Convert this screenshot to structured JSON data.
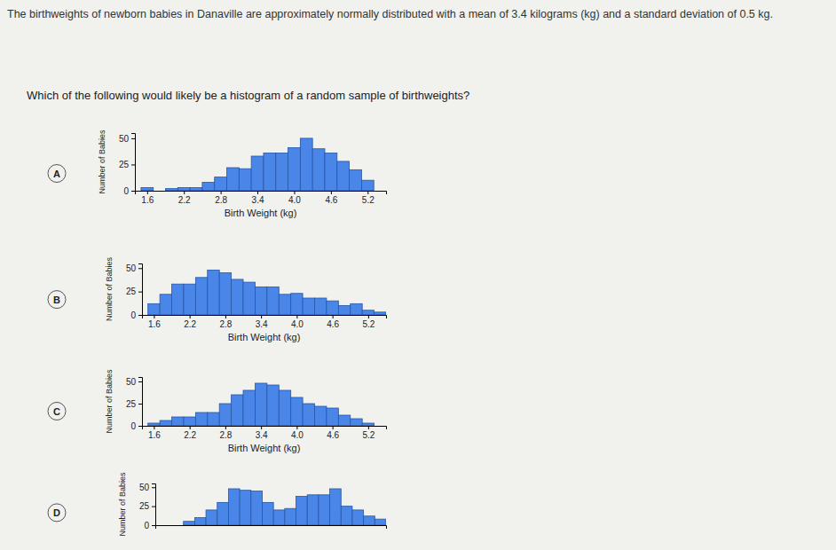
{
  "text": {
    "intro": "The birthweights of newborn babies in Danaville are approximately normally distributed with a mean of 3.4 kilograms (kg) and a standard deviation of 0.5 kg.",
    "question": "Which of the following would likely be a histogram of a random sample of birthweights?"
  },
  "chart_data": [
    {
      "type": "histogram",
      "title": "A",
      "x_label": "Birth Weight (kg)",
      "y_label": "Number of Babies",
      "color": "#4a86e8",
      "bins": [
        1.5,
        1.7,
        1.9,
        2.1,
        2.3,
        2.5,
        2.7,
        2.9,
        3.1,
        3.3,
        3.5,
        3.7,
        3.9,
        4.1,
        4.3,
        4.5,
        4.7,
        4.9,
        5.1,
        5.3,
        5.5
      ],
      "values": [
        3,
        0,
        2,
        3,
        3,
        8,
        13,
        22,
        21,
        33,
        36,
        36,
        41,
        50,
        40,
        36,
        28,
        20,
        10,
        0
      ],
      "xlim": [
        1.4,
        5.5
      ],
      "xticks": [
        1.6,
        2.2,
        2.8,
        3.4,
        {
          "value": 4,
          "label": "4.0"
        },
        4.6,
        5.2
      ],
      "ylim": [
        0,
        55
      ],
      "yticks": [
        0,
        25,
        50
      ]
    },
    {
      "type": "histogram",
      "title": "B",
      "x_label": "Birth Weight (kg)",
      "y_label": "Number of Babies",
      "color": "#4a86e8",
      "bins": [
        1.5,
        1.7,
        1.9,
        2.1,
        2.3,
        2.5,
        2.7,
        2.9,
        3.1,
        3.3,
        3.5,
        3.7,
        3.9,
        4.1,
        4.3,
        4.5,
        4.7,
        4.9,
        5.1,
        5.3,
        5.5
      ],
      "values": [
        12,
        22,
        33,
        33,
        40,
        48,
        45,
        38,
        35,
        30,
        30,
        22,
        23,
        18,
        18,
        15,
        10,
        12,
        5,
        3
      ],
      "xlim": [
        1.4,
        5.5
      ],
      "xticks": [
        1.6,
        2.2,
        2.8,
        3.4,
        {
          "value": 4,
          "label": "4.0"
        },
        4.6,
        5.2
      ],
      "ylim": [
        0,
        55
      ],
      "yticks": [
        0,
        25,
        50
      ]
    },
    {
      "type": "histogram",
      "title": "C",
      "x_label": "Birth Weight (kg)",
      "y_label": "Number of Babies",
      "color": "#4a86e8",
      "bins": [
        1.5,
        1.7,
        1.9,
        2.1,
        2.3,
        2.5,
        2.7,
        2.9,
        3.1,
        3.3,
        3.5,
        3.7,
        3.9,
        4.1,
        4.3,
        4.5,
        4.7,
        4.9,
        5.1,
        5.3,
        5.5
      ],
      "values": [
        3,
        6,
        10,
        10,
        15,
        15,
        25,
        35,
        40,
        48,
        46,
        40,
        32,
        25,
        22,
        20,
        12,
        8,
        3,
        0
      ],
      "xlim": [
        1.4,
        5.5
      ],
      "xticks": [
        1.6,
        2.2,
        2.8,
        3.4,
        {
          "value": 4,
          "label": "4.0"
        },
        4.6,
        5.2
      ],
      "ylim": [
        0,
        55
      ],
      "yticks": [
        0,
        25,
        50
      ]
    },
    {
      "type": "histogram",
      "title": "D",
      "y_label": "Number of Babies",
      "color": "#4a86e8",
      "tick_labels": "y",
      "bins": [
        1.5,
        1.7,
        1.9,
        2.1,
        2.3,
        2.5,
        2.7,
        2.9,
        3.1,
        3.3,
        3.5,
        3.7,
        3.9,
        4.1,
        4.3,
        4.5,
        4.7,
        4.9,
        5.1,
        5.3,
        5.5
      ],
      "values": [
        0,
        0,
        5,
        10,
        20,
        30,
        48,
        46,
        45,
        30,
        20,
        22,
        38,
        40,
        40,
        48,
        25,
        20,
        12,
        8
      ],
      "xlim": [
        1.4,
        5.5
      ],
      "ylim": [
        0,
        55
      ],
      "yticks": [
        0,
        25,
        50
      ]
    }
  ]
}
